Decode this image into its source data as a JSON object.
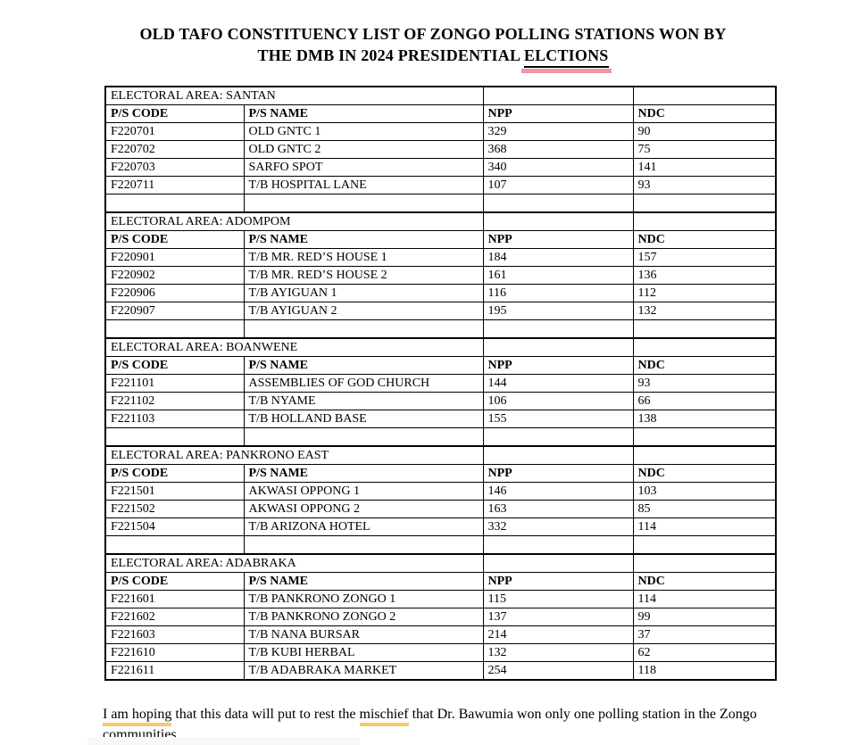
{
  "title": {
    "line1": "OLD TAFO CONSTITUENCY LIST OF ZONGO POLLING STATIONS WON BY",
    "line2_prefix": "THE DMB IN 2024 PRESIDENTIAL ",
    "line2_misspelled": "ELCTIONS"
  },
  "table": {
    "columns": [
      "P/S CODE",
      "P/S NAME",
      "NPP",
      "NDC"
    ],
    "sections": [
      {
        "area_label": "ELECTORAL AREA: SANTAN",
        "rows": [
          {
            "code": "F220701",
            "name": "OLD GNTC 1",
            "npp": "329",
            "ndc": "90"
          },
          {
            "code": "F220702",
            "name": "OLD GNTC 2",
            "npp": "368",
            "ndc": "75"
          },
          {
            "code": "F220703",
            "name": "SARFO SPOT",
            "npp": "340",
            "ndc": "141"
          },
          {
            "code": "F220711",
            "name": "T/B HOSPITAL LANE",
            "npp": "107",
            "ndc": "93"
          }
        ]
      },
      {
        "area_label": "ELECTORAL AREA: ADOMPOM",
        "rows": [
          {
            "code": "F220901",
            "name": "T/B MR. RED’S HOUSE 1",
            "npp": "184",
            "ndc": "157"
          },
          {
            "code": "F220902",
            "name": "T/B MR. RED’S HOUSE 2",
            "npp": "161",
            "ndc": "136"
          },
          {
            "code": "F220906",
            "name": "T/B AYIGUAN 1",
            "npp": "116",
            "ndc": "112"
          },
          {
            "code": "F220907",
            "name": "T/B AYIGUAN 2",
            "npp": "195",
            "ndc": "132"
          }
        ]
      },
      {
        "area_label": "ELECTORAL AREA: BOANWENE",
        "rows": [
          {
            "code": "F221101",
            "name": "ASSEMBLIES OF GOD CHURCH",
            "npp": "144",
            "ndc": "93"
          },
          {
            "code": "F221102",
            "name": "T/B NYAME",
            "npp": "106",
            "ndc": "66"
          },
          {
            "code": "F221103",
            "name": "T/B HOLLAND BASE",
            "npp": "155",
            "ndc": "138"
          }
        ]
      },
      {
        "area_label": "ELECTORAL AREA: PANKRONO EAST",
        "rows": [
          {
            "code": "F221501",
            "name": "AKWASI OPPONG 1",
            "npp": "146",
            "ndc": "103"
          },
          {
            "code": "F221502",
            "name": "AKWASI OPPONG 2",
            "npp": "163",
            "ndc": "85"
          },
          {
            "code": "F221504",
            "name": "T/B ARIZONA HOTEL",
            "npp": "332",
            "ndc": "114"
          }
        ]
      },
      {
        "area_label": "ELECTORAL AREA: ADABRAKA",
        "rows": [
          {
            "code": "F221601",
            "name": "T/B PANKRONO ZONGO 1",
            "npp": "115",
            "ndc": "114"
          },
          {
            "code": "F221602",
            "name": "T/B PANKRONO ZONGO 2",
            "npp": "137",
            "ndc": "99"
          },
          {
            "code": "F221603",
            "name": "T/B NANA BURSAR",
            "npp": "214",
            "ndc": "37"
          },
          {
            "code": "F221610",
            "name": "T/B KUBI HERBAL",
            "npp": "132",
            "ndc": "62"
          },
          {
            "code": "F221611",
            "name": "T/B ADABRAKA MARKET",
            "npp": "254",
            "ndc": "118"
          }
        ]
      }
    ]
  },
  "footer": {
    "segments": [
      {
        "text": "I am hoping",
        "underline": "grammar"
      },
      {
        "text": " that this data will put to rest the ",
        "underline": "none"
      },
      {
        "text": "mischief",
        "underline": "grammar"
      },
      {
        "text": " that Dr. Bawumia won only one polling station in the Zongo communities.",
        "underline": "none"
      }
    ]
  },
  "colors": {
    "spellcheck_pink": "#f195a1",
    "grammar_gold": "#f6c96b",
    "table_border": "#000000"
  }
}
